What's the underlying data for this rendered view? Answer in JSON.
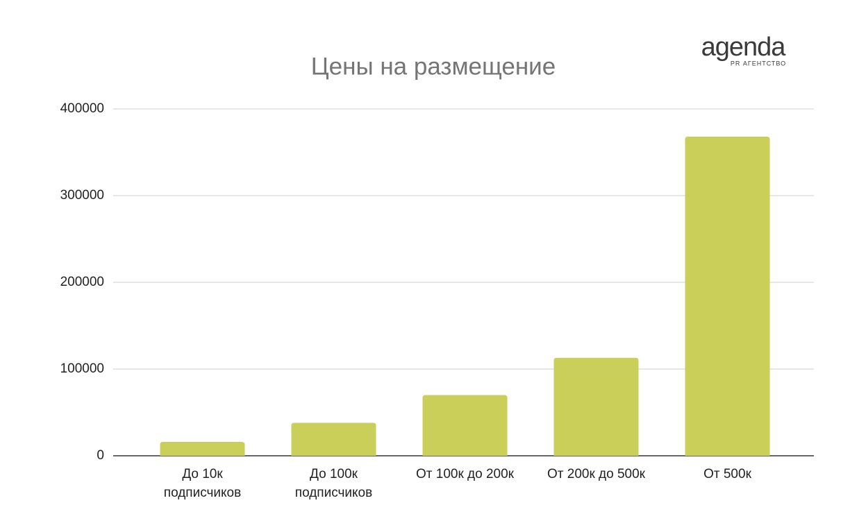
{
  "chart_data": {
    "type": "bar",
    "title": "Цены на размещение",
    "logo": "agenda",
    "logo_subtitle": "PR АГЕНТСТВО",
    "categories": [
      "До 10к\nподписчиков",
      "До 100к\nподписчиков",
      "От 100к до 200к",
      "От 200к до 500к",
      "От 500к"
    ],
    "values": [
      16000,
      38000,
      70000,
      113000,
      368000
    ],
    "color": "#c9cf58",
    "ylim": [
      0,
      400000
    ],
    "yticks": [
      0,
      100000,
      200000,
      300000,
      400000
    ],
    "grid": true
  }
}
